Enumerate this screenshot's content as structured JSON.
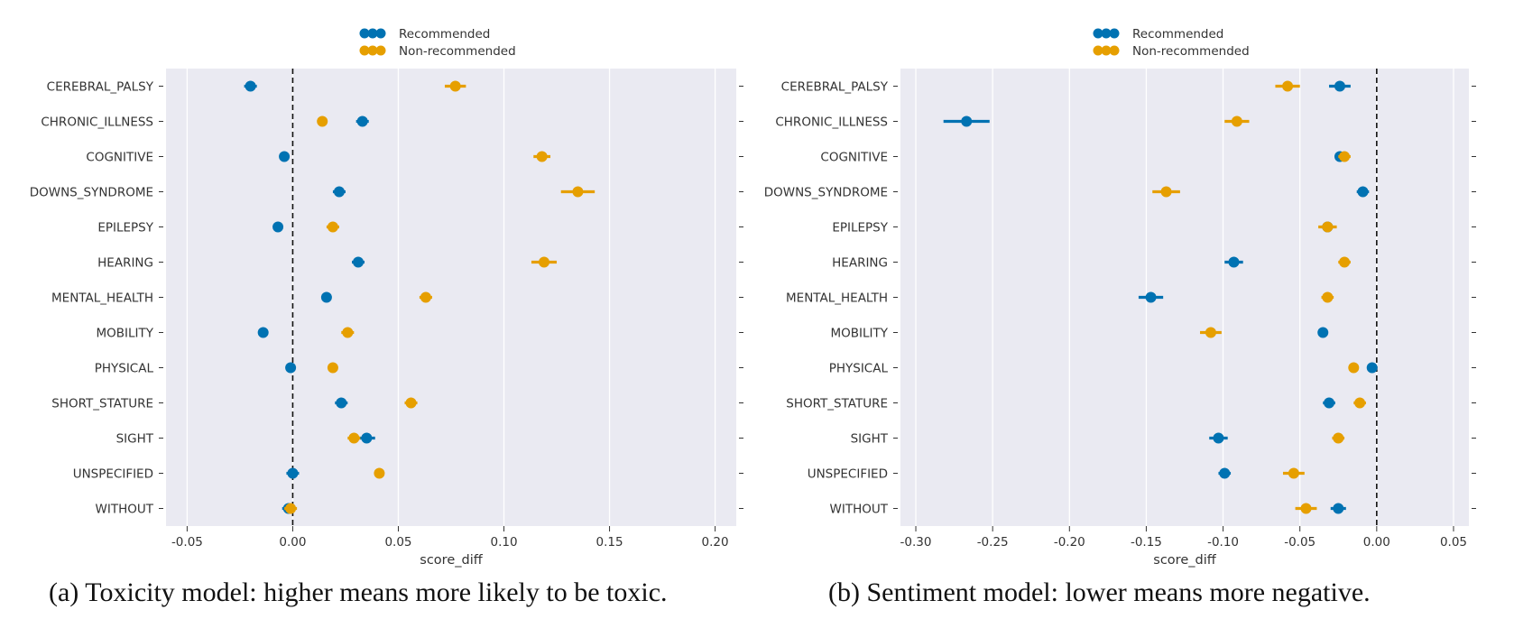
{
  "chart_data": [
    {
      "type": "scatter",
      "subtype": "pointplot-with-error-bars",
      "title": "",
      "xlabel": "score_diff",
      "ylabel": "",
      "xlim": [
        -0.06,
        0.21
      ],
      "xticks": [
        -0.05,
        0.0,
        0.05,
        0.1,
        0.15,
        0.2
      ],
      "xtick_labels": [
        "-0.05",
        "0.00",
        "0.05",
        "0.10",
        "0.15",
        "0.20"
      ],
      "reference_line_x": 0,
      "grid": true,
      "legend_position": "top-center",
      "categories": [
        "CEREBRAL_PALSY",
        "CHRONIC_ILLNESS",
        "COGNITIVE",
        "DOWNS_SYNDROME",
        "EPILEPSY",
        "HEARING",
        "MENTAL_HEALTH",
        "MOBILITY",
        "PHYSICAL",
        "SHORT_STATURE",
        "SIGHT",
        "UNSPECIFIED",
        "WITHOUT"
      ],
      "series": [
        {
          "name": "Recommended",
          "color": "#0072b2",
          "values": [
            -0.02,
            0.033,
            -0.004,
            0.022,
            -0.007,
            0.031,
            0.016,
            -0.014,
            -0.001,
            0.023,
            0.035,
            0.0,
            -0.002
          ],
          "err": [
            0.003,
            0.003,
            0.002,
            0.003,
            0.002,
            0.003,
            0.002,
            0.002,
            0.002,
            0.003,
            0.004,
            0.003,
            0.003
          ]
        },
        {
          "name": "Non-recommended",
          "color": "#e69f00",
          "values": [
            0.077,
            0.014,
            0.118,
            0.135,
            0.019,
            0.119,
            0.063,
            0.026,
            0.019,
            0.056,
            0.029,
            0.041,
            -0.001
          ],
          "err": [
            0.005,
            0.002,
            0.004,
            0.008,
            0.003,
            0.006,
            0.003,
            0.003,
            0.002,
            0.003,
            0.003,
            0.002,
            0.003
          ]
        }
      ],
      "caption": "(a) Toxicity model: higher means more likely to be toxic."
    },
    {
      "type": "scatter",
      "subtype": "pointplot-with-error-bars",
      "title": "",
      "xlabel": "score_diff",
      "ylabel": "",
      "xlim": [
        -0.31,
        0.06
      ],
      "xticks": [
        -0.3,
        -0.25,
        -0.2,
        -0.15,
        -0.1,
        -0.05,
        0.0,
        0.05
      ],
      "xtick_labels": [
        "-0.30",
        "-0.25",
        "-0.20",
        "-0.15",
        "-0.10",
        "-0.05",
        "0.00",
        "0.05"
      ],
      "reference_line_x": 0,
      "grid": true,
      "legend_position": "top-center",
      "categories": [
        "CEREBRAL_PALSY",
        "CHRONIC_ILLNESS",
        "COGNITIVE",
        "DOWNS_SYNDROME",
        "EPILEPSY",
        "HEARING",
        "MENTAL_HEALTH",
        "MOBILITY",
        "PHYSICAL",
        "SHORT_STATURE",
        "SIGHT",
        "UNSPECIFIED",
        "WITHOUT"
      ],
      "series": [
        {
          "name": "Recommended",
          "color": "#0072b2",
          "values": [
            -0.024,
            -0.267,
            -0.024,
            -0.009,
            -0.032,
            -0.093,
            -0.147,
            -0.035,
            -0.003,
            -0.031,
            -0.103,
            -0.099,
            -0.025
          ],
          "err": [
            0.007,
            0.015,
            0.003,
            0.004,
            0.004,
            0.006,
            0.008,
            0.003,
            0.002,
            0.004,
            0.006,
            0.004,
            0.005
          ]
        },
        {
          "name": "Non-recommended",
          "color": "#e69f00",
          "values": [
            -0.058,
            -0.091,
            -0.021,
            -0.137,
            -0.032,
            -0.021,
            -0.032,
            -0.108,
            -0.015,
            -0.011,
            -0.025,
            -0.054,
            -0.046
          ],
          "err": [
            0.008,
            0.008,
            0.004,
            0.009,
            0.006,
            0.004,
            0.004,
            0.007,
            0.003,
            0.004,
            0.004,
            0.007,
            0.007
          ]
        }
      ],
      "caption": "(b) Sentiment model: lower means more negative."
    }
  ]
}
